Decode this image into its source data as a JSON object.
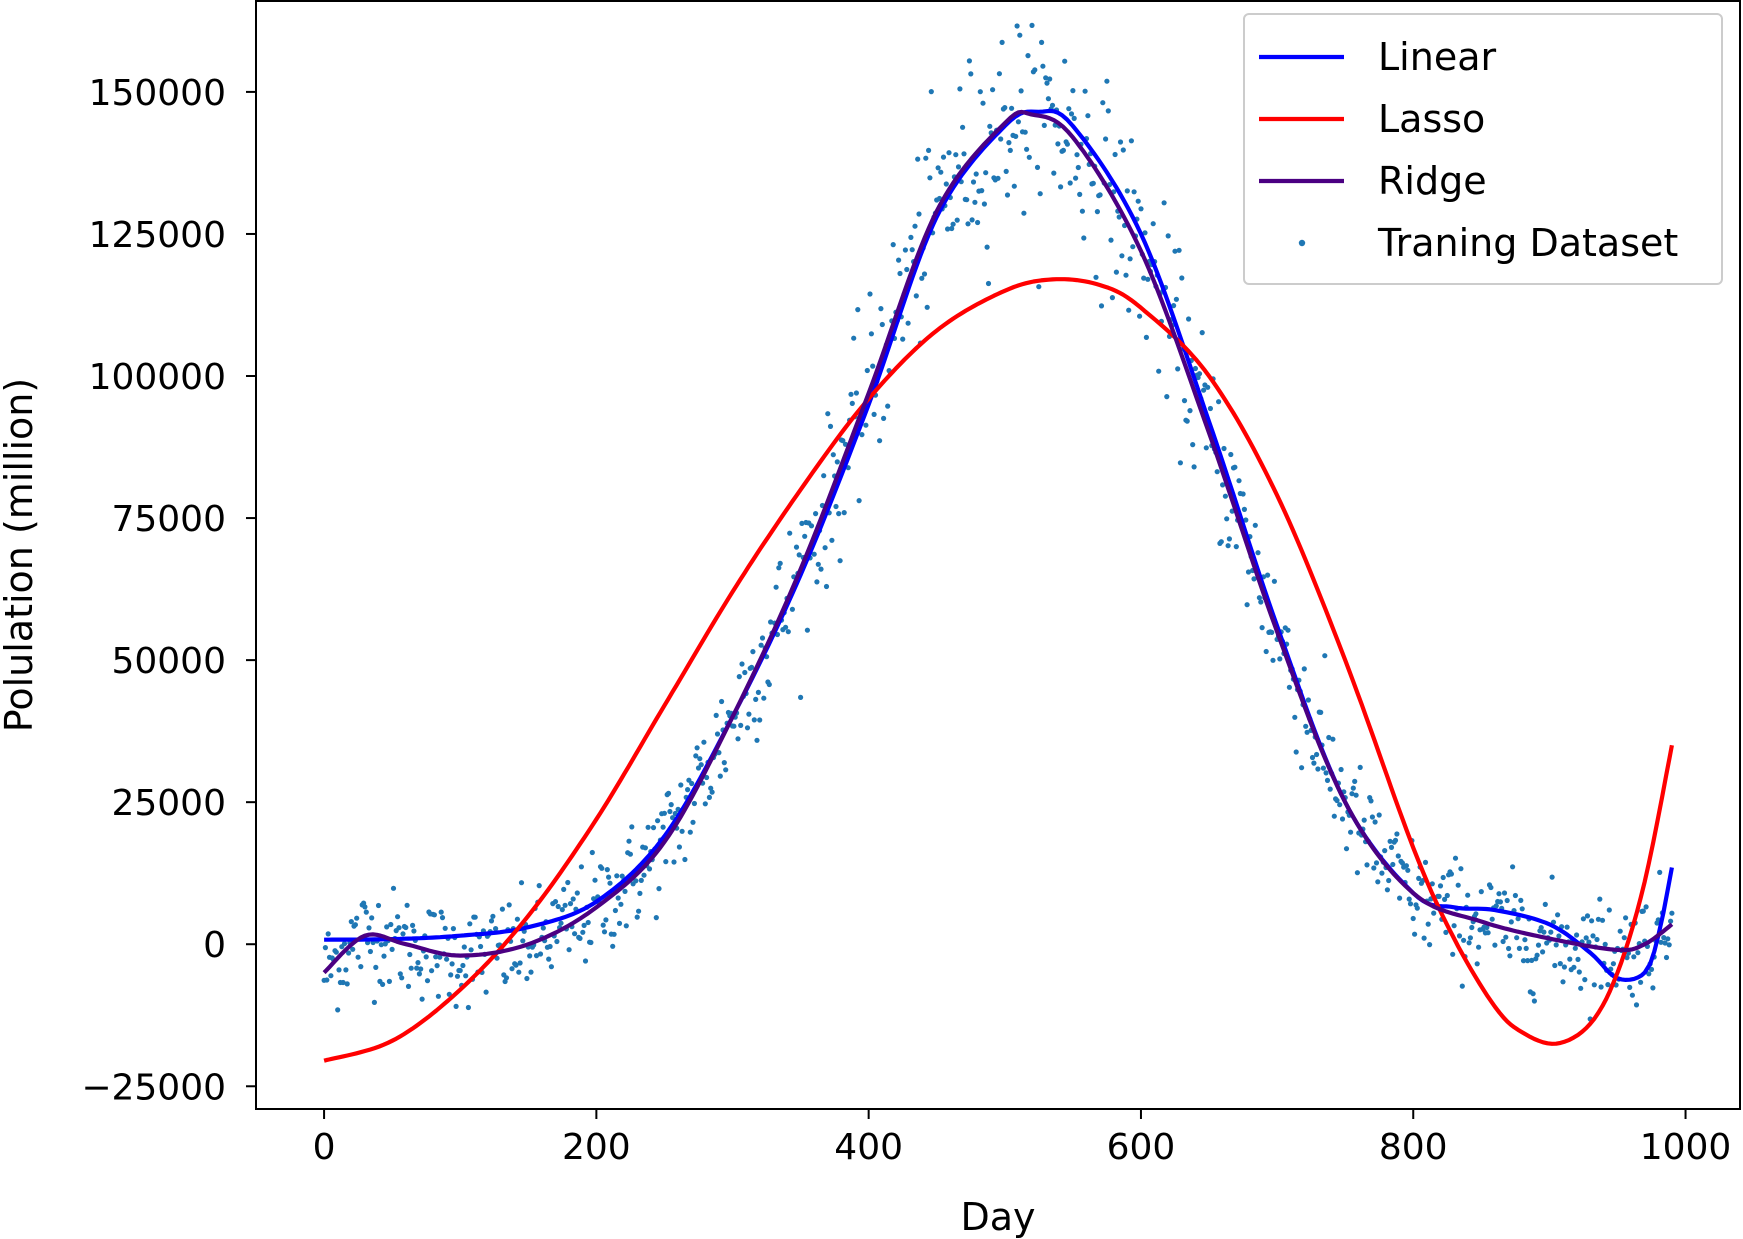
{
  "chart_data": {
    "type": "line",
    "title": "",
    "xlabel": "Day",
    "ylabel": "Polulation (million)",
    "xlim": [
      -50,
      1040
    ],
    "ylim": [
      -29000,
      166000
    ],
    "xticks": [
      0,
      200,
      400,
      600,
      800,
      1000
    ],
    "xtick_labels": [
      "0",
      "200",
      "400",
      "600",
      "800",
      "1000"
    ],
    "yticks": [
      -25000,
      0,
      25000,
      50000,
      75000,
      100000,
      125000,
      150000
    ],
    "ytick_labels": [
      "−25000",
      "0",
      "25000",
      "50000",
      "75000",
      "100000",
      "125000",
      "150000"
    ],
    "grid": false,
    "legend_position": "top-right",
    "series": [
      {
        "name": "Linear",
        "kind": "line",
        "color": "#0000ff",
        "x": [
          0,
          50,
          100,
          150,
          200,
          250,
          300,
          350,
          400,
          450,
          500,
          525,
          550,
          600,
          650,
          700,
          750,
          800,
          830,
          860,
          900,
          930,
          950,
          970,
          980,
          990
        ],
        "y": [
          800,
          900,
          1500,
          3000,
          7500,
          19000,
          40000,
          65000,
          95000,
          128000,
          144000,
          146500,
          144000,
          125000,
          92000,
          56000,
          25000,
          9000,
          6500,
          6000,
          3500,
          -1500,
          -6000,
          -5000,
          1500,
          13500
        ]
      },
      {
        "name": "Lasso",
        "kind": "line",
        "color": "#ff0000",
        "x": [
          0,
          50,
          100,
          150,
          200,
          250,
          300,
          350,
          400,
          450,
          500,
          535,
          570,
          600,
          650,
          700,
          750,
          800,
          830,
          860,
          880,
          905,
          930,
          950,
          970,
          990
        ],
        "y": [
          -20500,
          -17000,
          -8000,
          5000,
          22000,
          42000,
          62000,
          80000,
          96000,
          108000,
          115000,
          117000,
          116000,
          112000,
          100000,
          79000,
          50000,
          17000,
          1000,
          -11000,
          -15500,
          -17500,
          -14000,
          -5000,
          11000,
          35000
        ]
      },
      {
        "name": "Ridge",
        "kind": "line",
        "color": "#4b0082",
        "x": [
          0,
          30,
          60,
          100,
          150,
          200,
          250,
          300,
          350,
          400,
          450,
          500,
          520,
          550,
          600,
          650,
          700,
          750,
          800,
          850,
          900,
          950,
          970,
          990
        ],
        "y": [
          -5000,
          1500,
          0,
          -2000,
          0,
          6500,
          18000,
          40000,
          66000,
          97000,
          129000,
          144500,
          146000,
          142000,
          122000,
          90000,
          55000,
          25000,
          9000,
          4000,
          1000,
          -1000,
          0,
          3500
        ]
      },
      {
        "name": "Traning Dataset",
        "kind": "scatter",
        "color": "#1f77b4",
        "note": "noisy training samples around the underlying curve (day 0-990)"
      }
    ]
  }
}
